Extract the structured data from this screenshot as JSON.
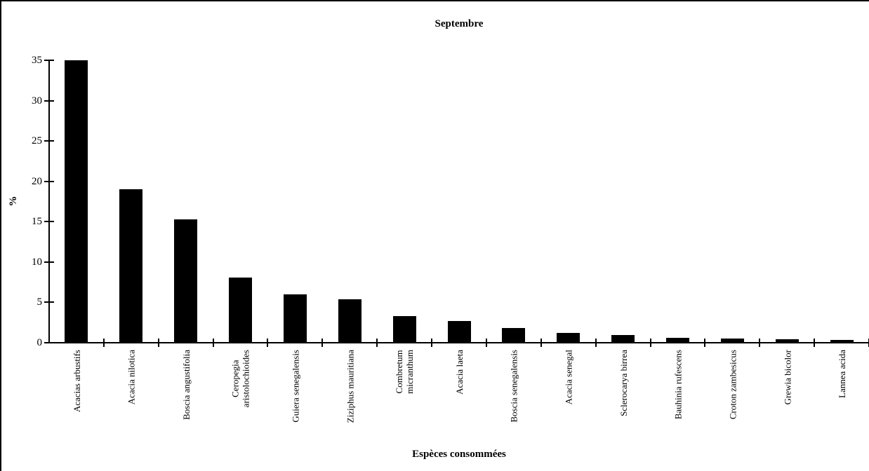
{
  "chart_data": {
    "type": "bar",
    "title": "Septembre",
    "xlabel": "Espèces consommées",
    "ylabel": "%",
    "ylim": [
      0,
      35
    ],
    "yticks": [
      0,
      5,
      10,
      15,
      20,
      25,
      30,
      35
    ],
    "grid": false,
    "legend": "none",
    "bar_color": "#000000",
    "background_color": "#ffffff",
    "categories": [
      "Acacias arbustifs",
      "Acacia nilotica",
      "Boscia angustifolia",
      "Ceropegia\naristolochioides",
      "Guiera senegalensis",
      "Ziziphus mauritiana",
      "Combretum\nmicranthum",
      "Acacia laeta",
      "Boscia senegalensis",
      "Acacia senegal",
      "Sclerocarya birrea",
      "Bauhinia rufescens",
      "Croton zambesicus",
      "Grewia bicolor",
      "Lannea acida"
    ],
    "values": [
      35,
      19,
      15.3,
      8.1,
      6,
      5.4,
      3.3,
      2.7,
      1.8,
      1.2,
      0.95,
      0.6,
      0.5,
      0.45,
      0.35
    ]
  }
}
